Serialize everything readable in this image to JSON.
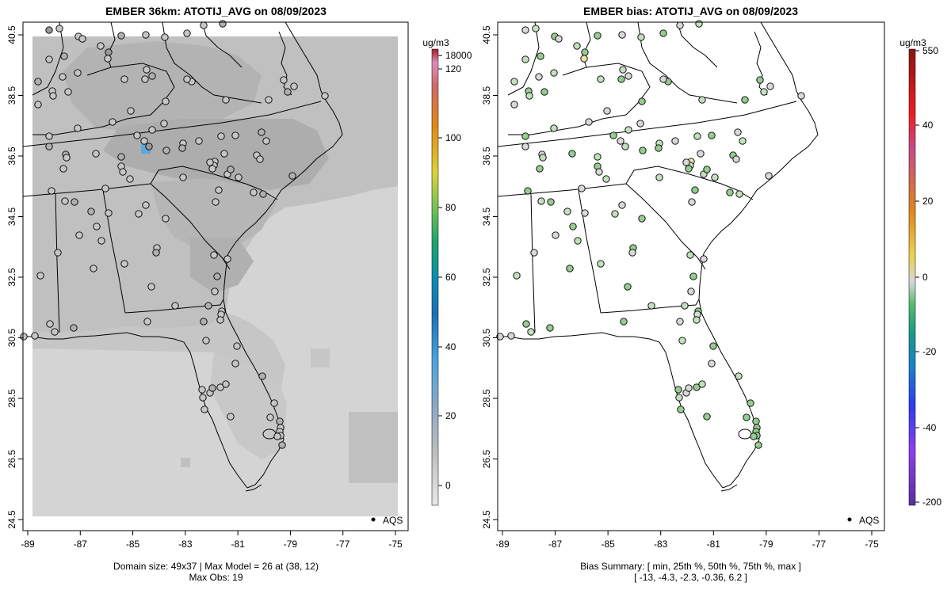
{
  "left_panel": {
    "title": "EMBER 36km: ATOTIJ_AVG on 08/09/2023",
    "footer_line1": "Domain size: 49x37 | Max Model = 26 at (38, 12)",
    "footer_line2": "Max Obs: 19",
    "legend_label": "AQS",
    "colorbar_unit": "ug/m3",
    "colorbar_ticks": [
      "18000",
      "120",
      "100",
      "80",
      "60",
      "40",
      "20",
      "0"
    ]
  },
  "right_panel": {
    "title": "EMBER bias: ATOTIJ_AVG on 08/09/2023",
    "footer_line1": "Bias Summary: [ min, 25th %, 50th %, 75th %, max ]",
    "footer_line2": "[ -13,   -4.3,   -2.3,   -0.36,   6.2 ]",
    "legend_label": "AQS",
    "colorbar_unit": "ug/m3",
    "colorbar_ticks": [
      "550",
      "40",
      "20",
      "0",
      "-20",
      "-40",
      "-200"
    ]
  },
  "axes": {
    "x_ticks": [
      "-89",
      "-87",
      "-85",
      "-83",
      "-81",
      "-79",
      "-77",
      "-75"
    ],
    "y_ticks": [
      "40.5",
      "38.5",
      "36.5",
      "34.5",
      "32.5",
      "30.5",
      "28.5",
      "26.5",
      "24.5"
    ]
  },
  "colors": {
    "model_field_light": "#d4d4d4",
    "model_field_mid": "#c0c0c0",
    "model_field_dark": "#ababab",
    "model_max_cell": "#5aa8dc",
    "bias_near_zero": "#d8d8d8",
    "bias_negative_small": "#c4dfbe",
    "bias_negative_mid": "#95cc8f",
    "bias_positive_small": "#f0e2a8"
  }
}
